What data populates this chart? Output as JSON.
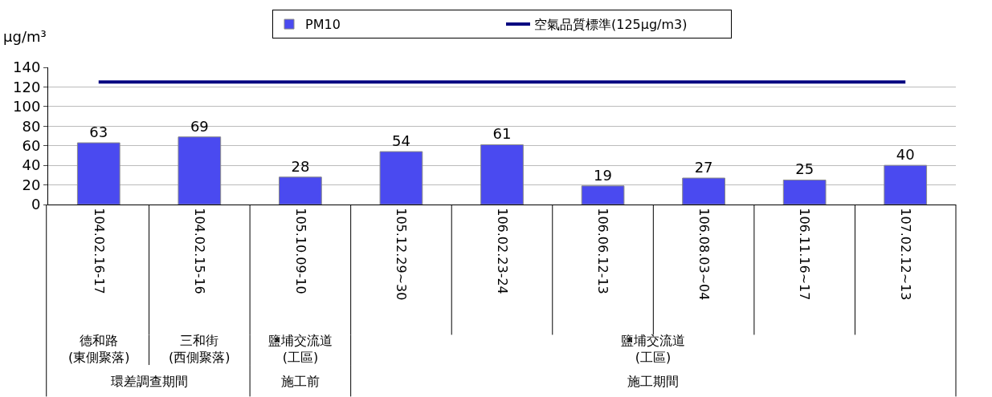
{
  "chart_data": {
    "type": "bar",
    "ylabel": "µg/m³",
    "categories": [
      "104.02.16-17",
      "104.02.15-16",
      "105.10.09-10",
      "105.12.29~30",
      "106.02.23-24",
      "106.06.12-13",
      "106.08.03~04",
      "106.11.16~17",
      "107.02.12~13"
    ],
    "series": [
      {
        "name": "PM10",
        "color": "#4a4af0",
        "values": [
          63,
          69,
          28,
          54,
          61,
          19,
          27,
          25,
          40
        ],
        "value_labels": [
          "63",
          "69",
          "28",
          "54",
          "61",
          "19",
          "27",
          "25",
          "40"
        ]
      },
      {
        "name": "空氣品質標準(125μg/m3)",
        "type": "line",
        "color": "#000080",
        "values": [
          125,
          125,
          125,
          125,
          125,
          125,
          125,
          125,
          125
        ]
      }
    ],
    "ylim": [
      0,
      140
    ],
    "yticks": [
      0,
      20,
      40,
      60,
      80,
      100,
      120,
      140
    ],
    "grid": "y",
    "legend": "top",
    "marker": "none",
    "annotations": [
      "德和路\n(東側聚落)",
      "三和街\n(西側聚落)",
      "鹽埔交流道\n(工區)",
      "鹽埔交流道\n(工區)",
      "環差調查期間",
      "施工前",
      "施工期間"
    ]
  }
}
